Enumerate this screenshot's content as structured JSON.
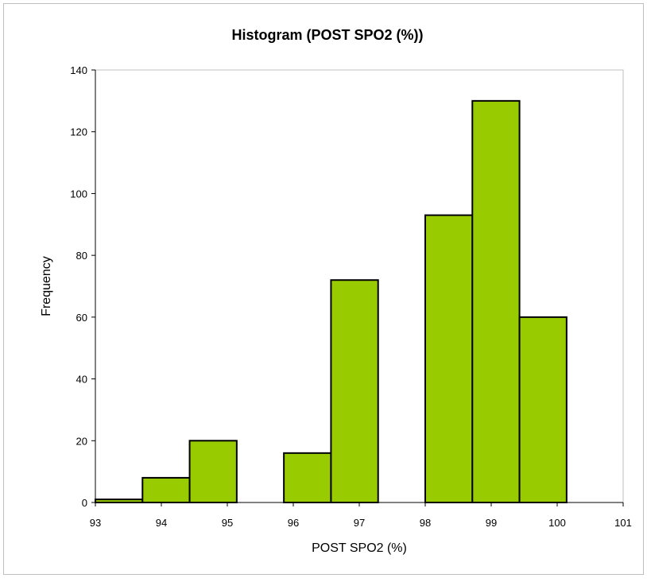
{
  "chart_data": {
    "type": "bar",
    "title": "Histogram  (POST SPO2  (%))",
    "xlabel": "POST SPO2  (%)",
    "ylabel": "Frequency",
    "bin_edges": [
      93,
      93.7143,
      94.4286,
      95.1429,
      95.8571,
      96.5714,
      97.2857,
      98,
      98.7143,
      99.4286,
      100.1429
    ],
    "values": [
      1,
      8,
      20,
      0,
      16,
      72,
      0,
      93,
      130,
      60
    ],
    "xlim": [
      93,
      101
    ],
    "ylim": [
      0,
      140
    ],
    "x_ticks": [
      93,
      94,
      95,
      96,
      97,
      98,
      99,
      100,
      101
    ],
    "y_ticks": [
      0,
      20,
      40,
      60,
      80,
      100,
      120,
      140
    ],
    "grid": false,
    "legend": "none",
    "bar_color": "#99cc00",
    "bar_edge_color": "#000000"
  }
}
